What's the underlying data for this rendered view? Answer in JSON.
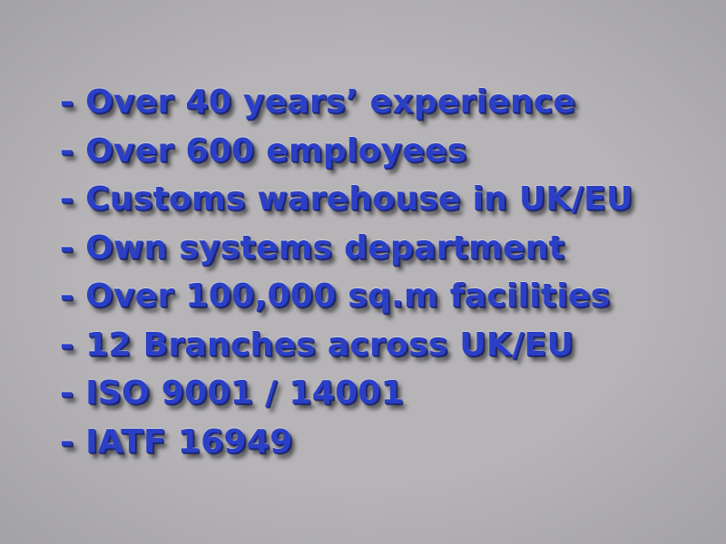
{
  "background_color": "#b6b4b7",
  "text_color": "#2a3fc6",
  "bullets": [
    "- Over 40 years’ experience",
    "- Over 600 employees",
    "- Customs warehouse in UK/EU",
    "- Own systems department",
    "- Over 100,000 sq.m facilities",
    "- 12 Branches across UK/EU",
    "- ISO 9001 / 14001",
    "- IATF 16949"
  ]
}
